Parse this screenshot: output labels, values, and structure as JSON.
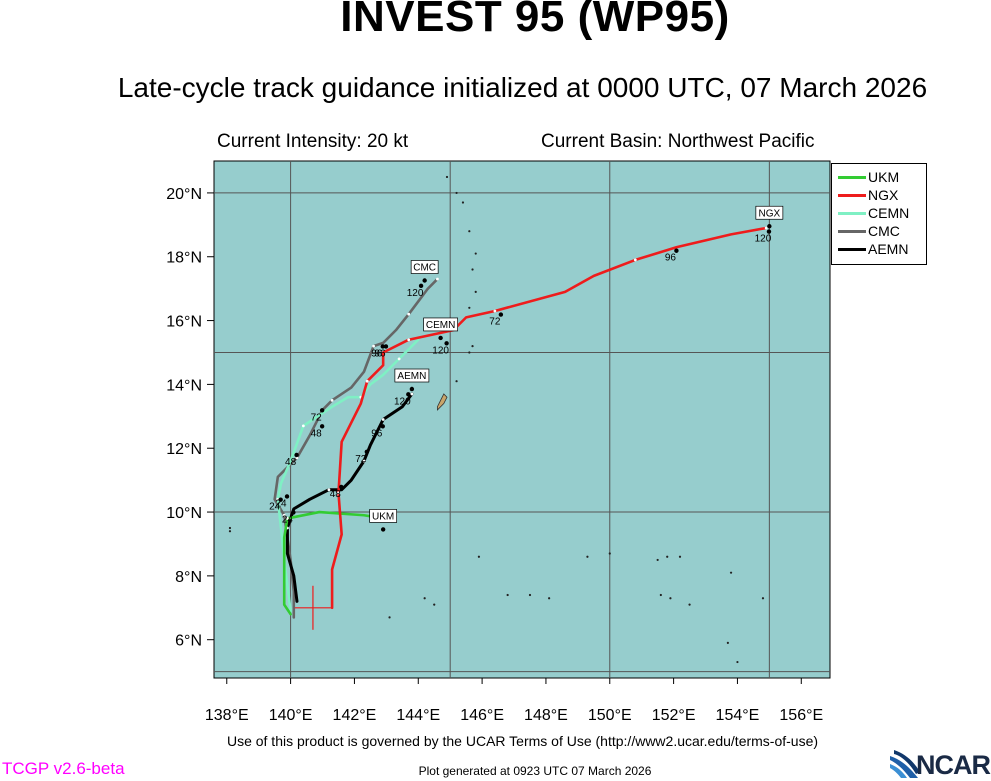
{
  "header": {
    "title": "INVEST 95 (WP95)",
    "subtitle": "Late-cycle track guidance initialized at 0000 UTC, 07 March 2026",
    "intensity": "Current Intensity: 20 kt",
    "basin": "Current Basin: Northwest Pacific"
  },
  "footer": {
    "terms": "Use of this product is governed by the UCAR Terms of Use (http://www2.ucar.edu/terms-of-use)",
    "version": "TCGP v2.6-beta",
    "generated": "Plot generated at 0923 UTC   07 March 2026",
    "logo": "NCAR"
  },
  "colors": {
    "ocean": "#96cdcd",
    "grid": "#555555",
    "UKM": "#33cc33",
    "NGX": "#ee1c1c",
    "CEMN": "#7ff0c4",
    "CMC": "#666666",
    "AEMN": "#000000"
  },
  "chart_data": {
    "type": "line",
    "title": "INVEST 95 (WP95)",
    "xlabel": "",
    "ylabel": "",
    "xlim": [
      137.6,
      156.9
    ],
    "ylim": [
      4.8,
      21.0
    ],
    "grid": true,
    "legend_position": "top-right, outside plot",
    "xticks": [
      138,
      140,
      142,
      144,
      146,
      148,
      150,
      152,
      154,
      156
    ],
    "xtick_labels": [
      "138°E",
      "140°E",
      "142°E",
      "144°E",
      "146°E",
      "148°E",
      "150°E",
      "152°E",
      "154°E",
      "156°E"
    ],
    "yticks": [
      6,
      8,
      10,
      12,
      14,
      16,
      18,
      20
    ],
    "ytick_labels": [
      "6°N",
      "8°N",
      "10°N",
      "12°N",
      "14°N",
      "16°N",
      "18°N",
      "20°N"
    ],
    "gridlines_lon": [
      140,
      145,
      150,
      155
    ],
    "gridlines_lat": [
      5,
      10,
      15,
      20
    ],
    "initial_position": {
      "lon": 140.7,
      "lat": 7.0
    },
    "series": [
      {
        "name": "UKM",
        "points": [
          [
            140.0,
            6.8
          ],
          [
            139.8,
            7.1
          ],
          [
            139.8,
            9.2
          ],
          [
            139.9,
            9.8
          ],
          [
            140.9,
            10.0
          ],
          [
            142.3,
            9.9
          ],
          [
            142.9,
            9.8
          ]
        ],
        "labels": [
          {
            "lon": 142.9,
            "lat": 9.8,
            "text": "UKM",
            "type": "end"
          }
        ]
      },
      {
        "name": "NGX",
        "points": [
          [
            141.3,
            7.0
          ],
          [
            141.3,
            8.2
          ],
          [
            141.6,
            9.3
          ],
          [
            141.5,
            10.6
          ],
          [
            141.6,
            12.2
          ],
          [
            142.2,
            13.4
          ],
          [
            142.4,
            14.1
          ],
          [
            142.9,
            14.6
          ],
          [
            142.9,
            15.0
          ],
          [
            143.7,
            15.4
          ],
          [
            145.1,
            15.7
          ],
          [
            145.5,
            16.1
          ],
          [
            146.4,
            16.3
          ],
          [
            148.6,
            16.9
          ],
          [
            149.5,
            17.4
          ],
          [
            150.8,
            17.9
          ],
          [
            152.1,
            18.3
          ],
          [
            153.8,
            18.7
          ],
          [
            154.9,
            18.9
          ]
        ],
        "labels": [
          {
            "lon": 146.4,
            "lat": 16.0,
            "text": "72",
            "type": "tau"
          },
          {
            "lon": 151.9,
            "lat": 18.0,
            "text": "96",
            "type": "tau"
          },
          {
            "lon": 154.8,
            "lat": 18.6,
            "text": "120",
            "type": "tau"
          },
          {
            "lon": 155.0,
            "lat": 19.3,
            "text": "NGX",
            "type": "end"
          }
        ]
      },
      {
        "name": "CEMN",
        "points": [
          [
            140.0,
            6.9
          ],
          [
            139.8,
            8.5
          ],
          [
            139.7,
            9.5
          ],
          [
            139.6,
            10.4
          ],
          [
            139.7,
            10.9
          ],
          [
            140.0,
            11.6
          ],
          [
            140.4,
            12.7
          ],
          [
            141.3,
            13.3
          ],
          [
            141.8,
            13.6
          ],
          [
            142.2,
            13.6
          ],
          [
            142.5,
            14.0
          ],
          [
            142.9,
            14.3
          ],
          [
            143.4,
            14.8
          ],
          [
            144.0,
            15.4
          ]
        ],
        "labels": [
          {
            "lon": 139.9,
            "lat": 9.8,
            "text": "24",
            "type": "tau"
          },
          {
            "lon": 140.0,
            "lat": 11.6,
            "text": "48",
            "type": "tau"
          },
          {
            "lon": 140.8,
            "lat": 13.0,
            "text": "72",
            "type": "tau"
          },
          {
            "lon": 142.8,
            "lat": 15.0,
            "text": "96",
            "type": "tau"
          },
          {
            "lon": 144.7,
            "lat": 15.1,
            "text": "120",
            "type": "tau"
          },
          {
            "lon": 144.7,
            "lat": 15.8,
            "text": "CEMN",
            "type": "end"
          }
        ]
      },
      {
        "name": "CMC",
        "points": [
          [
            140.1,
            6.7
          ],
          [
            140.1,
            7.5
          ],
          [
            140.0,
            8.5
          ],
          [
            139.8,
            9.9
          ],
          [
            139.5,
            10.4
          ],
          [
            139.6,
            11.1
          ],
          [
            140.2,
            11.7
          ],
          [
            140.6,
            12.4
          ],
          [
            141.0,
            13.2
          ],
          [
            141.3,
            13.5
          ],
          [
            141.9,
            13.9
          ],
          [
            142.3,
            14.4
          ],
          [
            142.6,
            15.2
          ],
          [
            142.9,
            15.3
          ],
          [
            143.3,
            15.7
          ],
          [
            143.7,
            16.2
          ],
          [
            144.0,
            16.6
          ],
          [
            144.3,
            17.0
          ],
          [
            144.6,
            17.3
          ]
        ],
        "labels": [
          {
            "lon": 139.5,
            "lat": 10.2,
            "text": "24",
            "type": "tau"
          },
          {
            "lon": 140.8,
            "lat": 12.5,
            "text": "48",
            "type": "tau"
          },
          {
            "lon": 142.7,
            "lat": 15.0,
            "text": "96",
            "type": "tau"
          },
          {
            "lon": 143.9,
            "lat": 16.9,
            "text": "120",
            "type": "tau"
          },
          {
            "lon": 144.2,
            "lat": 17.6,
            "text": "CMC",
            "type": "end"
          }
        ]
      },
      {
        "name": "AEMN",
        "points": [
          [
            140.2,
            7.2
          ],
          [
            140.1,
            8.0
          ],
          [
            139.9,
            8.7
          ],
          [
            139.9,
            9.5
          ],
          [
            140.1,
            10.1
          ],
          [
            140.6,
            10.4
          ],
          [
            141.2,
            10.7
          ],
          [
            141.6,
            10.7
          ],
          [
            141.9,
            11.0
          ],
          [
            142.3,
            11.6
          ],
          [
            142.5,
            12.1
          ],
          [
            142.7,
            12.5
          ],
          [
            142.9,
            12.9
          ],
          [
            143.2,
            13.1
          ],
          [
            143.5,
            13.3
          ],
          [
            143.8,
            13.7
          ]
        ],
        "labels": [
          {
            "lon": 139.7,
            "lat": 10.3,
            "text": "24",
            "type": "tau"
          },
          {
            "lon": 141.4,
            "lat": 10.6,
            "text": "48",
            "type": "tau"
          },
          {
            "lon": 142.2,
            "lat": 11.7,
            "text": "72",
            "type": "tau"
          },
          {
            "lon": 142.7,
            "lat": 12.5,
            "text": "96",
            "type": "tau"
          },
          {
            "lon": 143.5,
            "lat": 13.5,
            "text": "120",
            "type": "tau"
          },
          {
            "lon": 143.8,
            "lat": 14.2,
            "text": "AEMN",
            "type": "end"
          }
        ]
      }
    ],
    "islands": [
      [
        145.7,
        15.2
      ],
      [
        145.6,
        15.0
      ],
      [
        145.6,
        16.4
      ],
      [
        145.8,
        16.9
      ],
      [
        145.7,
        17.6
      ],
      [
        145.8,
        18.1
      ],
      [
        145.6,
        18.8
      ],
      [
        145.4,
        19.7
      ],
      [
        145.2,
        20.0
      ],
      [
        144.9,
        20.5
      ],
      [
        144.7,
        13.4
      ],
      [
        144.8,
        13.6
      ],
      [
        145.2,
        14.1
      ],
      [
        138.1,
        9.5
      ],
      [
        138.1,
        9.4
      ],
      [
        145.9,
        8.6
      ],
      [
        146.8,
        7.4
      ],
      [
        147.5,
        7.4
      ],
      [
        148.1,
        7.3
      ],
      [
        149.3,
        8.6
      ],
      [
        150.0,
        8.7
      ],
      [
        151.5,
        8.5
      ],
      [
        151.8,
        8.6
      ],
      [
        152.2,
        8.6
      ],
      [
        151.6,
        7.4
      ],
      [
        151.9,
        7.3
      ],
      [
        152.5,
        7.1
      ],
      [
        153.8,
        8.1
      ],
      [
        154.8,
        7.3
      ],
      [
        154.0,
        5.3
      ],
      [
        153.7,
        5.9
      ],
      [
        143.1,
        6.7
      ],
      [
        144.2,
        7.3
      ],
      [
        144.5,
        7.1
      ]
    ],
    "guam_outline": [
      [
        144.6,
        13.2
      ],
      [
        144.8,
        13.4
      ],
      [
        144.9,
        13.6
      ],
      [
        144.8,
        13.7
      ],
      [
        144.7,
        13.5
      ],
      [
        144.6,
        13.3
      ],
      [
        144.6,
        13.2
      ]
    ]
  }
}
